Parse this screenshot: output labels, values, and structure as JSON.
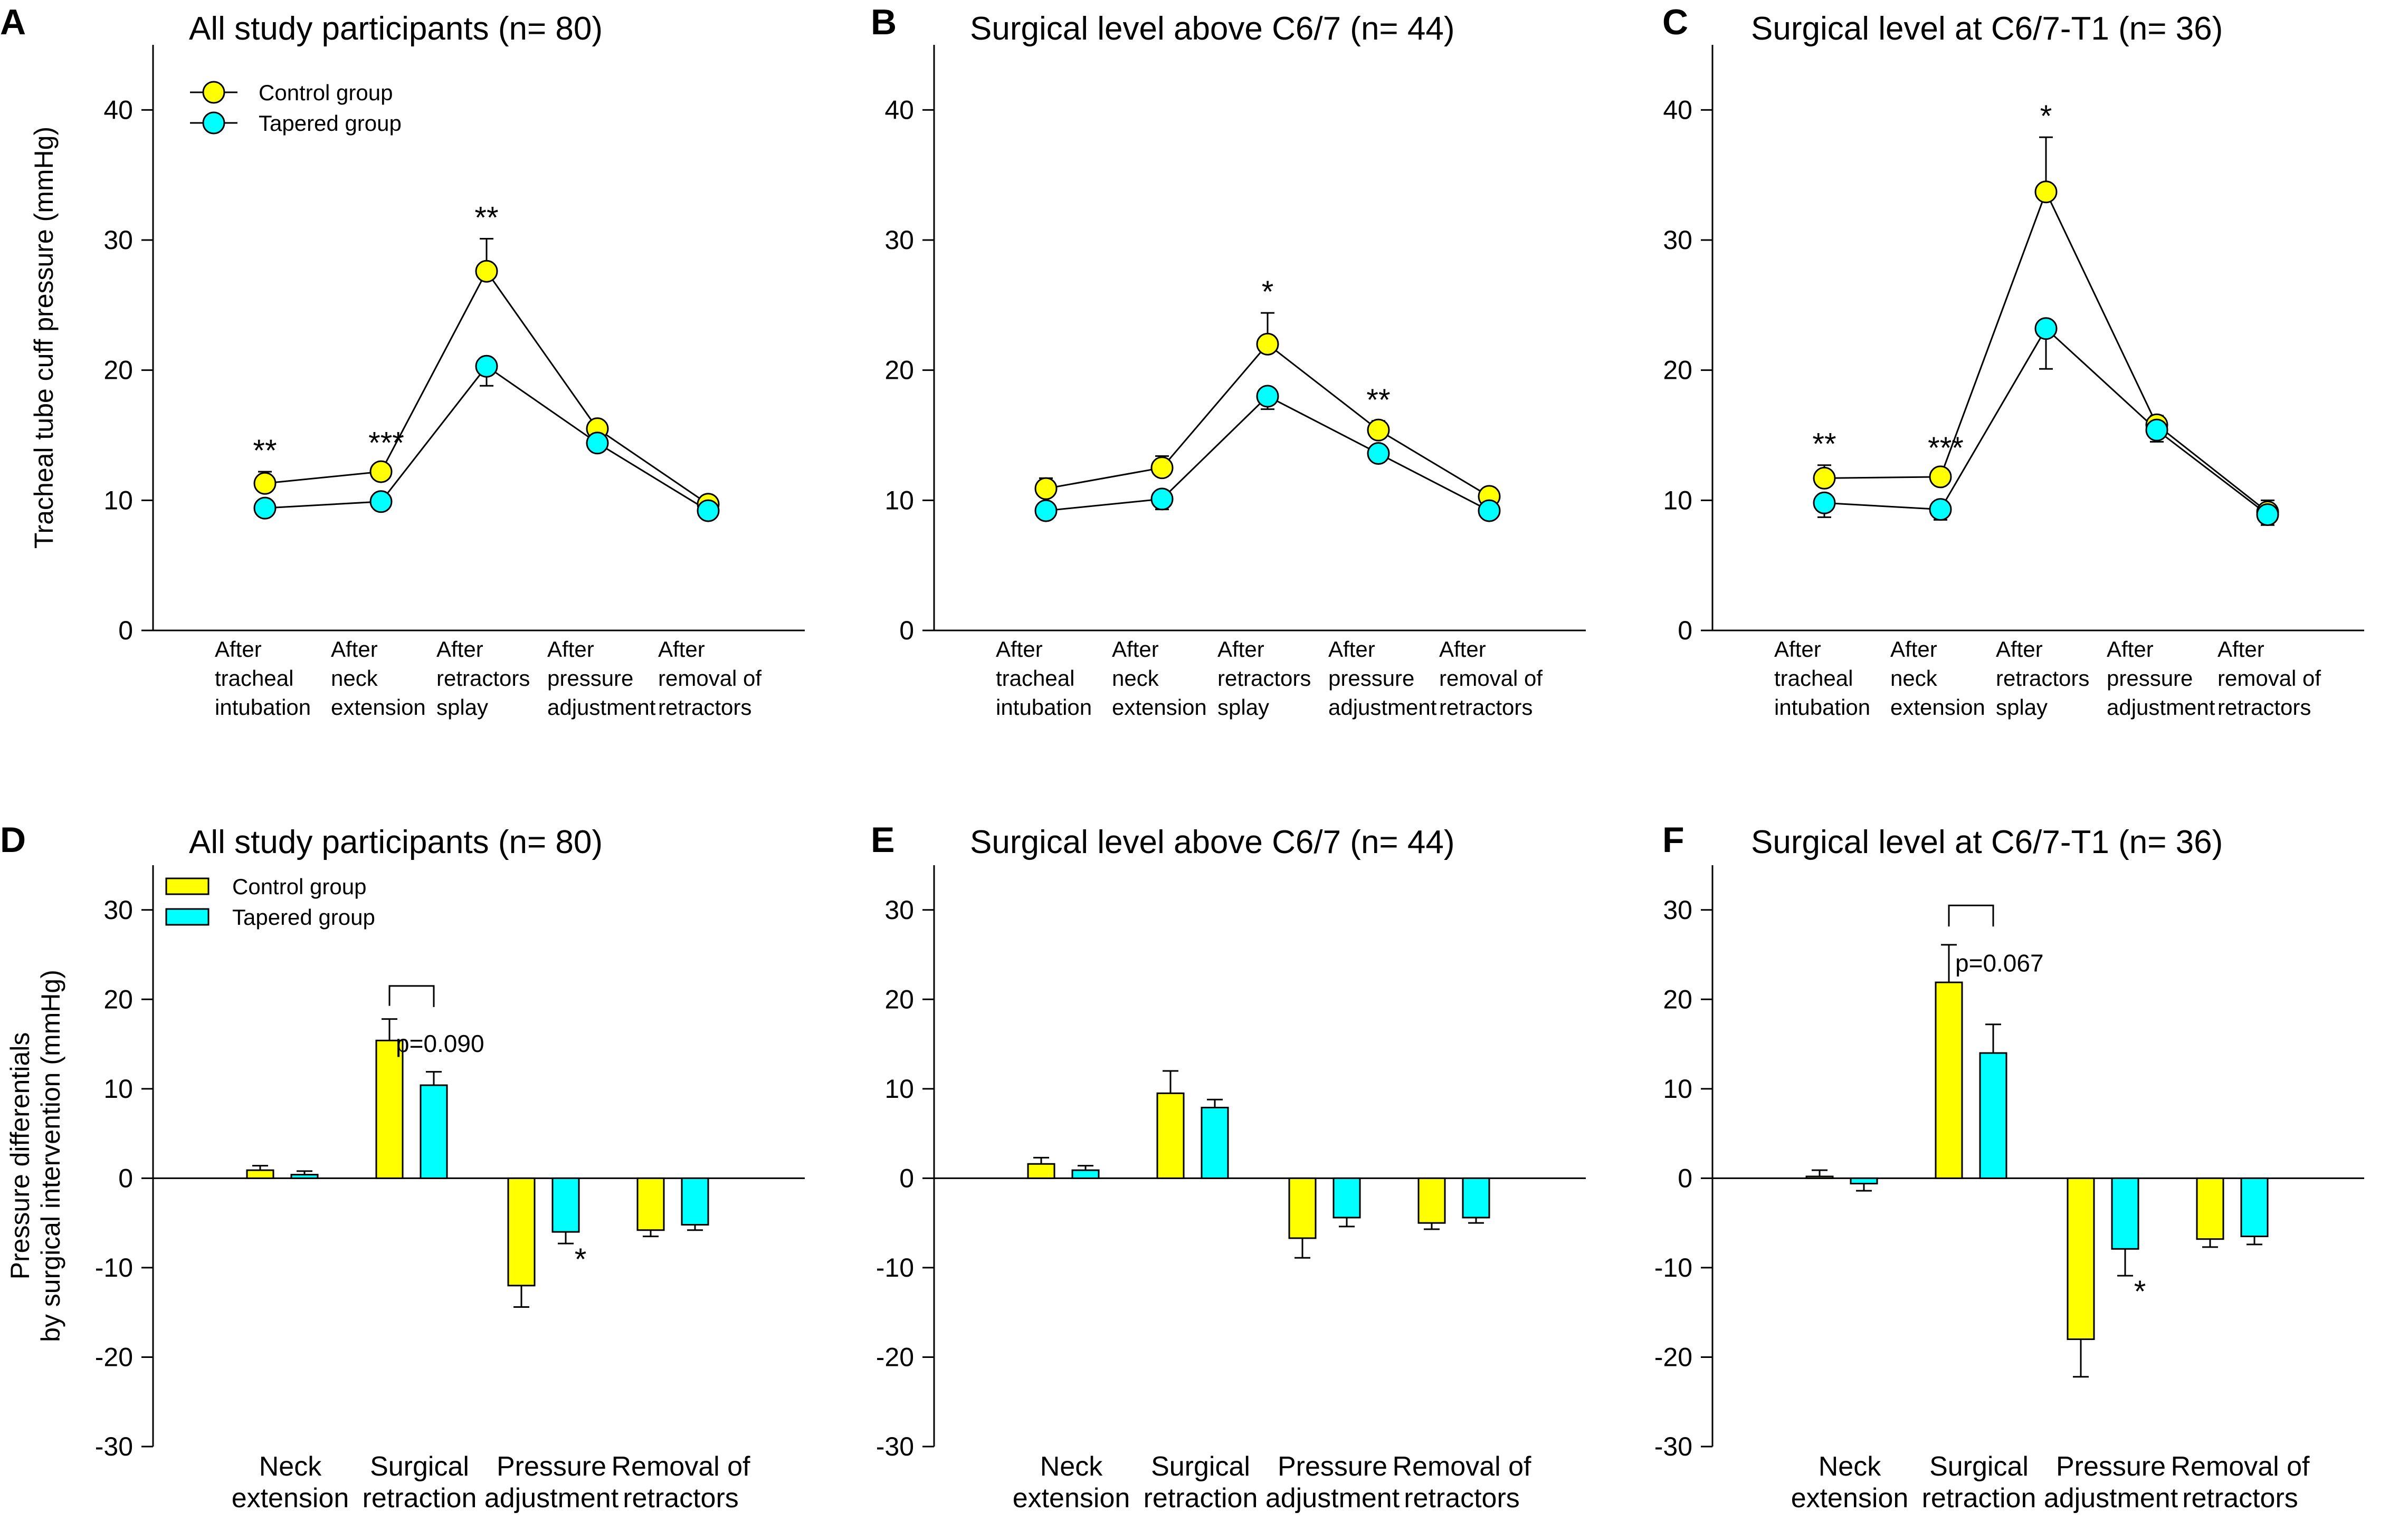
{
  "chart_data": [
    {
      "id": "A",
      "type": "line",
      "title": "All study participants (n= 80)",
      "ylabel": "Tracheal tube cuff pressure (mmHg)",
      "ylim": [
        0,
        45
      ],
      "yticks": [
        0,
        10,
        20,
        30,
        40
      ],
      "categories": [
        [
          "After",
          "tracheal",
          "intubation"
        ],
        [
          "After",
          "neck",
          "extension"
        ],
        [
          "After",
          "retractors",
          "splay"
        ],
        [
          "After",
          "pressure",
          "adjustment"
        ],
        [
          "After",
          "removal of",
          "retractors"
        ]
      ],
      "legend": "top-left",
      "series": [
        {
          "name": "Control group",
          "color": "#ffff00",
          "values": [
            11.3,
            12.2,
            27.6,
            15.5,
            9.7
          ],
          "errors": [
            0.9,
            0.6,
            2.5,
            0.6,
            0.4
          ]
        },
        {
          "name": "Tapered group",
          "color": "#00ffff",
          "values": [
            9.4,
            9.9,
            20.3,
            14.4,
            9.2
          ],
          "errors": [
            0.5,
            0.5,
            1.5,
            0.6,
            0.4
          ]
        }
      ],
      "annotations": [
        {
          "index": 0,
          "text": "**"
        },
        {
          "index": 1,
          "text": "***"
        },
        {
          "index": 2,
          "text": "**"
        }
      ]
    },
    {
      "id": "B",
      "type": "line",
      "title": "Surgical level above C6/7 (n= 44)",
      "ylabel": "",
      "ylim": [
        0,
        45
      ],
      "yticks": [
        0,
        10,
        20,
        30,
        40
      ],
      "categories": [
        [
          "After",
          "tracheal",
          "intubation"
        ],
        [
          "After",
          "neck",
          "extension"
        ],
        [
          "After",
          "retractors",
          "splay"
        ],
        [
          "After",
          "pressure",
          "adjustment"
        ],
        [
          "After",
          "removal of",
          "retractors"
        ]
      ],
      "legend": "",
      "series": [
        {
          "name": "Control group",
          "color": "#ffff00",
          "values": [
            10.9,
            12.5,
            22.0,
            15.4,
            10.3
          ],
          "errors": [
            0.8,
            0.9,
            2.4,
            0.7,
            0.6
          ]
        },
        {
          "name": "Tapered group",
          "color": "#00ffff",
          "values": [
            9.2,
            10.1,
            18.0,
            13.6,
            9.2
          ],
          "errors": [
            0.5,
            0.8,
            1.0,
            0.6,
            0.4
          ]
        }
      ],
      "annotations": [
        {
          "index": 2,
          "text": "*"
        },
        {
          "index": 3,
          "text": "**"
        }
      ]
    },
    {
      "id": "C",
      "type": "line",
      "title": "Surgical level at C6/7-T1 (n= 36)",
      "ylabel": "",
      "ylim": [
        0,
        45
      ],
      "yticks": [
        0,
        10,
        20,
        30,
        40
      ],
      "categories": [
        [
          "After",
          "tracheal",
          "intubation"
        ],
        [
          "After",
          "neck",
          "extension"
        ],
        [
          "After",
          "retractors",
          "splay"
        ],
        [
          "After",
          "pressure",
          "adjustment"
        ],
        [
          "After",
          "removal of",
          "retractors"
        ]
      ],
      "legend": "",
      "series": [
        {
          "name": "Control group",
          "color": "#ffff00",
          "values": [
            11.7,
            11.8,
            33.7,
            15.8,
            9.1
          ],
          "errors": [
            1.0,
            0.6,
            4.2,
            0.7,
            0.9
          ]
        },
        {
          "name": "Tapered group",
          "color": "#00ffff",
          "values": [
            9.8,
            9.3,
            23.2,
            15.4,
            8.9
          ],
          "errors": [
            1.1,
            0.8,
            3.1,
            0.9,
            0.8
          ]
        }
      ],
      "annotations": [
        {
          "index": 0,
          "text": "**"
        },
        {
          "index": 1,
          "text": "***"
        },
        {
          "index": 2,
          "text": "*"
        }
      ]
    },
    {
      "id": "D",
      "type": "bar",
      "title": "All study participants (n= 80)",
      "ylabel": [
        "Pressure differentials",
        "by surgical intervention (mmHg)"
      ],
      "ylim": [
        -30,
        35
      ],
      "yticks": [
        -30,
        -20,
        -10,
        0,
        10,
        20,
        30
      ],
      "categories": [
        [
          "Neck",
          "extension"
        ],
        [
          "Surgical",
          "retraction"
        ],
        [
          "Pressure",
          "adjustment"
        ],
        [
          "Removal of",
          "retractors"
        ]
      ],
      "legend": "top-left",
      "series": [
        {
          "name": "Control group",
          "color": "#ffff00",
          "values": [
            0.9,
            15.4,
            -12.0,
            -5.8
          ],
          "errors": [
            0.5,
            2.4,
            2.4,
            0.7
          ]
        },
        {
          "name": "Tapered group",
          "color": "#00ffff",
          "values": [
            0.4,
            10.4,
            -6.0,
            -5.2
          ],
          "errors": [
            0.4,
            1.5,
            1.3,
            0.6
          ]
        }
      ],
      "bracket": {
        "index": 1,
        "text": "p=0.090",
        "y": 21.5
      },
      "annotations": [
        {
          "index": 2,
          "text": "*"
        }
      ]
    },
    {
      "id": "E",
      "type": "bar",
      "title": "Surgical level above C6/7 (n= 44)",
      "ylabel": "",
      "ylim": [
        -30,
        35
      ],
      "yticks": [
        -30,
        -20,
        -10,
        0,
        10,
        20,
        30
      ],
      "categories": [
        [
          "Neck",
          "extension"
        ],
        [
          "Surgical",
          "retraction"
        ],
        [
          "Pressure",
          "adjustment"
        ],
        [
          "Removal of",
          "retractors"
        ]
      ],
      "legend": "",
      "series": [
        {
          "name": "Control group",
          "color": "#ffff00",
          "values": [
            1.6,
            9.5,
            -6.7,
            -5.0
          ],
          "errors": [
            0.7,
            2.5,
            2.2,
            0.7
          ]
        },
        {
          "name": "Tapered group",
          "color": "#00ffff",
          "values": [
            0.9,
            7.9,
            -4.4,
            -4.4
          ],
          "errors": [
            0.5,
            0.9,
            1.0,
            0.6
          ]
        }
      ],
      "annotations": []
    },
    {
      "id": "F",
      "type": "bar",
      "title": "Surgical level at C6/7-T1 (n= 36)",
      "ylabel": "",
      "ylim": [
        -30,
        35
      ],
      "yticks": [
        -30,
        -20,
        -10,
        0,
        10,
        20,
        30
      ],
      "categories": [
        [
          "Neck",
          "extension"
        ],
        [
          "Surgical",
          "retraction"
        ],
        [
          "Pressure",
          "adjustment"
        ],
        [
          "Removal of",
          "retractors"
        ]
      ],
      "legend": "",
      "series": [
        {
          "name": "Control group",
          "color": "#ffff00",
          "values": [
            0.2,
            21.9,
            -18.0,
            -6.8
          ],
          "errors": [
            0.7,
            4.2,
            4.2,
            0.9
          ]
        },
        {
          "name": "Tapered group",
          "color": "#00ffff",
          "values": [
            -0.6,
            14.0,
            -7.9,
            -6.5
          ],
          "errors": [
            0.8,
            3.2,
            3.0,
            0.9
          ]
        }
      ],
      "bracket": {
        "index": 1,
        "text": "p=0.067",
        "y": 30.5
      },
      "annotations": [
        {
          "index": 2,
          "text": "*"
        }
      ]
    }
  ]
}
